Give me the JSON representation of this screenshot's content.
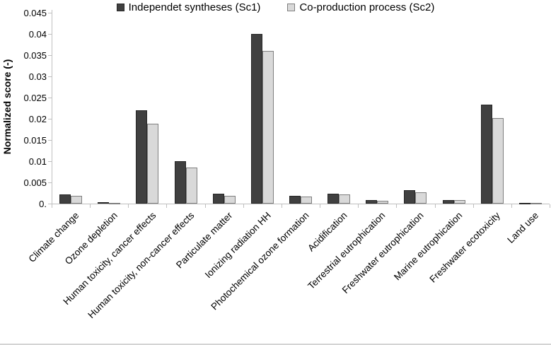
{
  "chart_data": {
    "type": "bar",
    "title": "",
    "xlabel": "",
    "ylabel": "Normalized score (-)",
    "ylim": [
      0,
      0.045
    ],
    "ytick_step": 0.005,
    "ytick_labels": [
      "0.",
      "0.005",
      "0.01",
      "0.015",
      "0.02",
      "0.025",
      "0.03",
      "0.035",
      "0.04",
      "0.045"
    ],
    "grid": false,
    "legend_position": "top",
    "categories": [
      "Climate change",
      "Ozone depletion",
      "Human toxicity, cancer effects",
      "Human toxicity, non-cancer effects",
      "Particulate matter",
      "Ionizing radiation HH",
      "Photochemical ozone formation",
      "Acidification",
      "Terrestrial eutrophication",
      "Freshwater eutrophication",
      "Marine eutrophication",
      "Freshwater ecotoxicity",
      "Land use"
    ],
    "series": [
      {
        "name": "Independet syntheses (Sc1)",
        "color": "#404040",
        "border_color": "#262626",
        "values": [
          0.0022,
          0.0003,
          0.022,
          0.01,
          0.0023,
          0.04,
          0.0019,
          0.0023,
          0.0008,
          0.0032,
          0.0009,
          0.0233,
          0.0001
        ]
      },
      {
        "name": "Co-production process (Sc2)",
        "color": "#d9d9d9",
        "border_color": "#7f7f7f",
        "values": [
          0.0018,
          0.0002,
          0.0188,
          0.0085,
          0.0019,
          0.036,
          0.0017,
          0.0021,
          0.0007,
          0.0026,
          0.0008,
          0.0201,
          0.0001
        ]
      }
    ],
    "axis_color": "#bfbfbf"
  }
}
